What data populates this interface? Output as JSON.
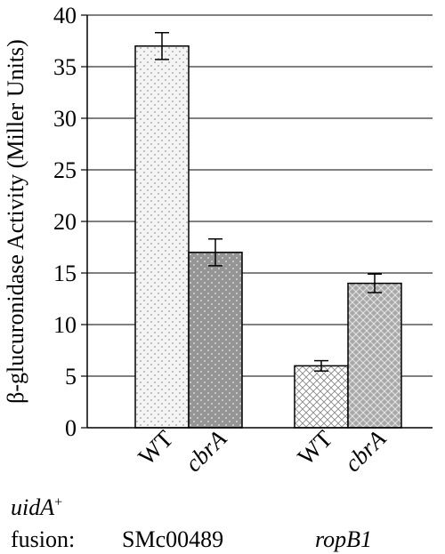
{
  "chart_data": {
    "type": "bar",
    "ylabel": "β-glucuronidase Activity (Miller Units)",
    "ylim": [
      0,
      40
    ],
    "yticks": [
      0,
      5,
      10,
      15,
      20,
      25,
      30,
      35,
      40
    ],
    "grid": true,
    "categories": [
      "WT",
      "cbrA",
      "WT",
      "cbrA"
    ],
    "values": [
      37,
      17,
      6,
      14
    ],
    "errors": [
      1.3,
      1.3,
      0.5,
      0.9
    ],
    "groups": [
      "SMc00489",
      "ropB1"
    ],
    "category_styles": [
      "italic-none",
      "italic",
      "italic-none",
      "italic"
    ],
    "fill_colors": [
      "#f2f2f2",
      "#9a9a9a",
      "#ffffff",
      "#aaaaaa"
    ],
    "patterns": [
      "dots-light",
      "dots-dark",
      "crosshatch-light",
      "crosshatch-dark"
    ]
  },
  "footer": {
    "reporter_label": "uidA",
    "reporter_sup": "+",
    "fusion_label": "fusion:",
    "group1": "SMc00489",
    "group2": "ropB1"
  }
}
